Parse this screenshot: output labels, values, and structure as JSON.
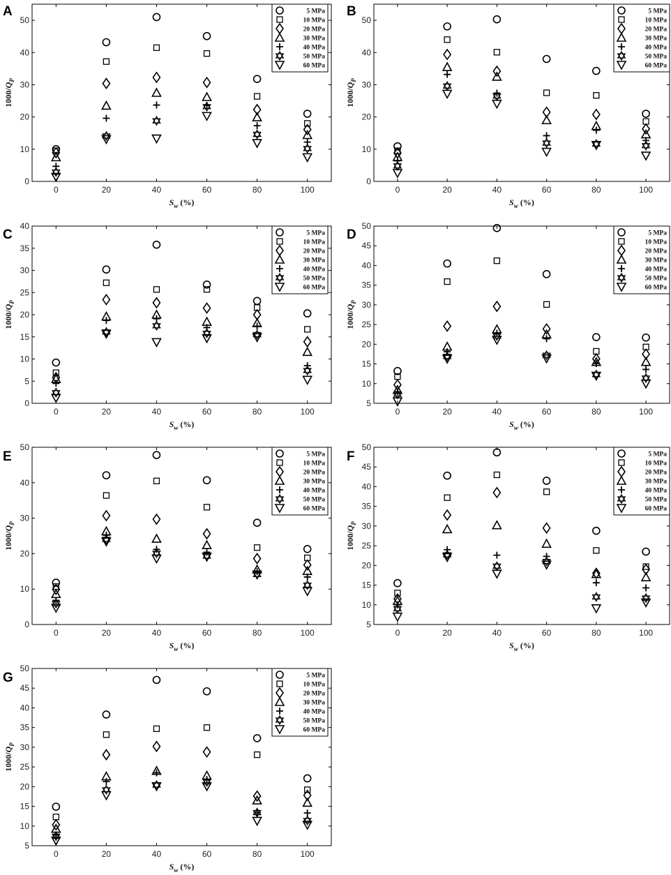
{
  "figure": {
    "legend_labels": [
      "5 MPa",
      "10 MPa",
      "20 MPa",
      "30 MPa",
      "40 MPa",
      "50 MPa",
      "60 MPa"
    ],
    "marker_icons": [
      "circle-icon",
      "square-icon",
      "diamond-icon",
      "triangle-up-icon",
      "plus-icon",
      "star-of-david-icon",
      "triangle-down-icon"
    ],
    "xlabel": {
      "main": "S",
      "sub": "w",
      "unit": " (%)"
    },
    "ylabel": {
      "prefix": "1000/",
      "main": "Q",
      "sub": "P"
    }
  },
  "chart_data": [
    {
      "panel": "A",
      "type": "scatter",
      "x": [
        0,
        20,
        40,
        60,
        80,
        100
      ],
      "xticks": [
        "0",
        "20",
        "40",
        "60",
        "80",
        "100"
      ],
      "ylim": [
        0,
        55
      ],
      "yticks": [
        0,
        10,
        20,
        30,
        40,
        50
      ],
      "grid": false,
      "legend": "top-right",
      "series": [
        {
          "name": "5 MPa",
          "values": [
            10,
            43.2,
            51,
            45.1,
            31.8,
            21
          ]
        },
        {
          "name": "10 MPa",
          "values": [
            9.5,
            37.2,
            41.5,
            39.7,
            26.4,
            18
          ]
        },
        {
          "name": "20 MPa",
          "values": [
            8.9,
            30.4,
            32.3,
            30.7,
            22.3,
            16.1
          ]
        },
        {
          "name": "30 MPa",
          "values": [
            7.5,
            23.5,
            27.5,
            26.2,
            19.9,
            14.4
          ]
        },
        {
          "name": "40 MPa",
          "values": [
            4.7,
            19.6,
            23.7,
            23.6,
            17.3,
            12.2
          ]
        },
        {
          "name": "50 MPa",
          "values": [
            2.9,
            14.1,
            18.8,
            23.2,
            14.6,
            10.2
          ]
        },
        {
          "name": "60 MPa",
          "values": [
            1.4,
            13.1,
            13.3,
            20.3,
            11.9,
            7.5
          ]
        }
      ]
    },
    {
      "panel": "B",
      "type": "scatter",
      "x": [
        0,
        20,
        40,
        60,
        80,
        100
      ],
      "xticks": [
        "0",
        "20",
        "40",
        "60",
        "80",
        "100"
      ],
      "ylim": [
        0,
        55
      ],
      "yticks": [
        0,
        10,
        20,
        30,
        40,
        50
      ],
      "grid": false,
      "legend": "top-right",
      "series": [
        {
          "name": "5 MPa",
          "values": [
            10.9,
            48.1,
            50.3,
            38,
            34.3,
            21
          ]
        },
        {
          "name": "10 MPa",
          "values": [
            9.5,
            44,
            40.1,
            27.5,
            26.7,
            18.6
          ]
        },
        {
          "name": "20 MPa",
          "values": [
            8.8,
            39.4,
            34.2,
            21.5,
            20.8,
            16.3
          ]
        },
        {
          "name": "30 MPa",
          "values": [
            7.6,
            35.5,
            32.5,
            19,
            17.2,
            14.6
          ]
        },
        {
          "name": "40 MPa",
          "values": [
            6.4,
            33.2,
            27.4,
            14.2,
            15.9,
            12.7
          ]
        },
        {
          "name": "50 MPa",
          "values": [
            4.8,
            29.6,
            26.5,
            11.9,
            11.6,
            11.1
          ]
        },
        {
          "name": "60 MPa",
          "values": [
            2.6,
            27.2,
            24.1,
            9.2,
            11.3,
            8
          ]
        }
      ]
    },
    {
      "panel": "C",
      "type": "scatter",
      "x": [
        0,
        20,
        40,
        60,
        80,
        100
      ],
      "xticks": [
        "0",
        "20",
        "40",
        "60",
        "80",
        "100"
      ],
      "ylim": [
        0,
        40
      ],
      "yticks": [
        0,
        5,
        10,
        15,
        20,
        25,
        30,
        35,
        40
      ],
      "grid": false,
      "legend": "top-right",
      "series": [
        {
          "name": "5 MPa",
          "values": [
            9.2,
            30.2,
            35.8,
            26.8,
            23.1,
            20.3
          ]
        },
        {
          "name": "10 MPa",
          "values": [
            6.9,
            27.2,
            25.7,
            25.7,
            21.6,
            16.7
          ]
        },
        {
          "name": "20 MPa",
          "values": [
            5.8,
            23.4,
            22.7,
            21.5,
            20,
            13.9
          ]
        },
        {
          "name": "30 MPa",
          "values": [
            5.5,
            19.6,
            20,
            18.4,
            18.1,
            11.6
          ]
        },
        {
          "name": "40 MPa",
          "values": [
            4.5,
            18.7,
            19.1,
            17.1,
            17.4,
            8.5
          ]
        },
        {
          "name": "50 MPa",
          "values": [
            2.4,
            16.1,
            17.5,
            15.8,
            15.5,
            7.4
          ]
        },
        {
          "name": "60 MPa",
          "values": [
            1.2,
            15.7,
            13.8,
            14.7,
            14.9,
            5.3
          ]
        }
      ]
    },
    {
      "panel": "D",
      "type": "scatter",
      "x": [
        0,
        20,
        40,
        60,
        80,
        100
      ],
      "xticks": [
        "0",
        "20",
        "40",
        "60",
        "80",
        "100"
      ],
      "ylim": [
        5,
        50
      ],
      "yticks": [
        5,
        10,
        15,
        20,
        25,
        30,
        35,
        40,
        45,
        50
      ],
      "grid": false,
      "legend": "top-right",
      "series": [
        {
          "name": "5 MPa",
          "values": [
            13.2,
            40.5,
            49.5,
            37.8,
            21.8,
            21.7
          ]
        },
        {
          "name": "10 MPa",
          "values": [
            11.8,
            35.9,
            41.2,
            30.1,
            18.2,
            19.3
          ]
        },
        {
          "name": "20 MPa",
          "values": [
            9.7,
            24.6,
            29.6,
            23.9,
            16.3,
            17.5
          ]
        },
        {
          "name": "30 MPa",
          "values": [
            8.4,
            19.4,
            23.8,
            22.5,
            15.5,
            15.5
          ]
        },
        {
          "name": "40 MPa",
          "values": [
            7.9,
            18.1,
            22.8,
            21.4,
            15.1,
            13.6
          ]
        },
        {
          "name": "50 MPa",
          "values": [
            7.3,
            16.9,
            22.1,
            17.2,
            12.3,
            11.4
          ]
        },
        {
          "name": "60 MPa",
          "values": [
            5.5,
            16.3,
            21.1,
            16.4,
            12,
            10
          ]
        }
      ]
    },
    {
      "panel": "E",
      "type": "scatter",
      "x": [
        0,
        20,
        40,
        60,
        80,
        100
      ],
      "xticks": [
        "0",
        "20",
        "40",
        "60",
        "80",
        "100"
      ],
      "ylim": [
        0,
        50
      ],
      "yticks": [
        0,
        10,
        20,
        30,
        40,
        50
      ],
      "grid": false,
      "legend": "top-right",
      "series": [
        {
          "name": "5 MPa",
          "values": [
            11.8,
            42.1,
            47.8,
            40.7,
            28.7,
            21.3
          ]
        },
        {
          "name": "10 MPa",
          "values": [
            10.7,
            36.4,
            40.5,
            33.1,
            21.7,
            18.8
          ]
        },
        {
          "name": "20 MPa",
          "values": [
            9.9,
            30.7,
            29.7,
            25.6,
            18.6,
            16.8
          ]
        },
        {
          "name": "30 MPa",
          "values": [
            8.6,
            26.3,
            24.2,
            22.4,
            15.5,
            15.1
          ]
        },
        {
          "name": "40 MPa",
          "values": [
            6.8,
            25.2,
            21.2,
            20.4,
            14.9,
            13.4
          ]
        },
        {
          "name": "50 MPa",
          "values": [
            5.9,
            24,
            20.1,
            19.3,
            14.1,
            11.1
          ]
        },
        {
          "name": "60 MPa",
          "values": [
            4.7,
            23.4,
            18.6,
            19.1,
            14.1,
            9.4
          ]
        }
      ]
    },
    {
      "panel": "F",
      "type": "scatter",
      "x": [
        0,
        20,
        40,
        60,
        80,
        100
      ],
      "xticks": [
        "0",
        "20",
        "40",
        "60",
        "80",
        "100"
      ],
      "ylim": [
        5,
        50
      ],
      "yticks": [
        5,
        10,
        15,
        20,
        25,
        30,
        35,
        40,
        45,
        50
      ],
      "grid": false,
      "legend": "top-right",
      "series": [
        {
          "name": "5 MPa",
          "values": [
            15.5,
            42.8,
            48.7,
            41.5,
            28.8,
            23.5
          ]
        },
        {
          "name": "10 MPa",
          "values": [
            13,
            37.2,
            43,
            38.7,
            23.8,
            19.7
          ]
        },
        {
          "name": "20 MPa",
          "values": [
            11.5,
            32.8,
            38.5,
            29.5,
            18,
            19
          ]
        },
        {
          "name": "30 MPa",
          "values": [
            11,
            29.2,
            30.2,
            25.5,
            17.8,
            17
          ]
        },
        {
          "name": "40 MPa",
          "values": [
            10,
            24,
            22.6,
            22.3,
            15.6,
            14.3
          ]
        },
        {
          "name": "50 MPa",
          "values": [
            9,
            22.7,
            19.8,
            21,
            12,
            11.7
          ]
        },
        {
          "name": "60 MPa",
          "values": [
            7,
            22.1,
            17.9,
            20.2,
            9.1,
            10.6
          ]
        }
      ]
    },
    {
      "panel": "G",
      "type": "scatter",
      "x": [
        0,
        20,
        40,
        60,
        80,
        100
      ],
      "xticks": [
        "0",
        "20",
        "40",
        "60",
        "80",
        "100"
      ],
      "ylim": [
        5,
        50
      ],
      "yticks": [
        5,
        10,
        15,
        20,
        25,
        30,
        35,
        40,
        45,
        50
      ],
      "grid": false,
      "legend": "top-right",
      "series": [
        {
          "name": "5 MPa",
          "values": [
            14.9,
            38.3,
            47.1,
            44.2,
            32.3,
            22.1
          ]
        },
        {
          "name": "10 MPa",
          "values": [
            12.3,
            33.2,
            34.7,
            35,
            28.1,
            19.2
          ]
        },
        {
          "name": "20 MPa",
          "values": [
            10.3,
            28.1,
            30.2,
            28.8,
            17.6,
            17.8
          ]
        },
        {
          "name": "30 MPa",
          "values": [
            9.3,
            22.6,
            24,
            22.8,
            16.5,
            15.9
          ]
        },
        {
          "name": "40 MPa",
          "values": [
            7.7,
            21.3,
            23.5,
            21.8,
            13.4,
            13.3
          ]
        },
        {
          "name": "50 MPa",
          "values": [
            7.4,
            19.2,
            20.4,
            21.2,
            13.4,
            11.4
          ]
        },
        {
          "name": "60 MPa",
          "values": [
            6.3,
            17.8,
            20.1,
            20.1,
            11.3,
            10.3
          ]
        }
      ]
    }
  ]
}
